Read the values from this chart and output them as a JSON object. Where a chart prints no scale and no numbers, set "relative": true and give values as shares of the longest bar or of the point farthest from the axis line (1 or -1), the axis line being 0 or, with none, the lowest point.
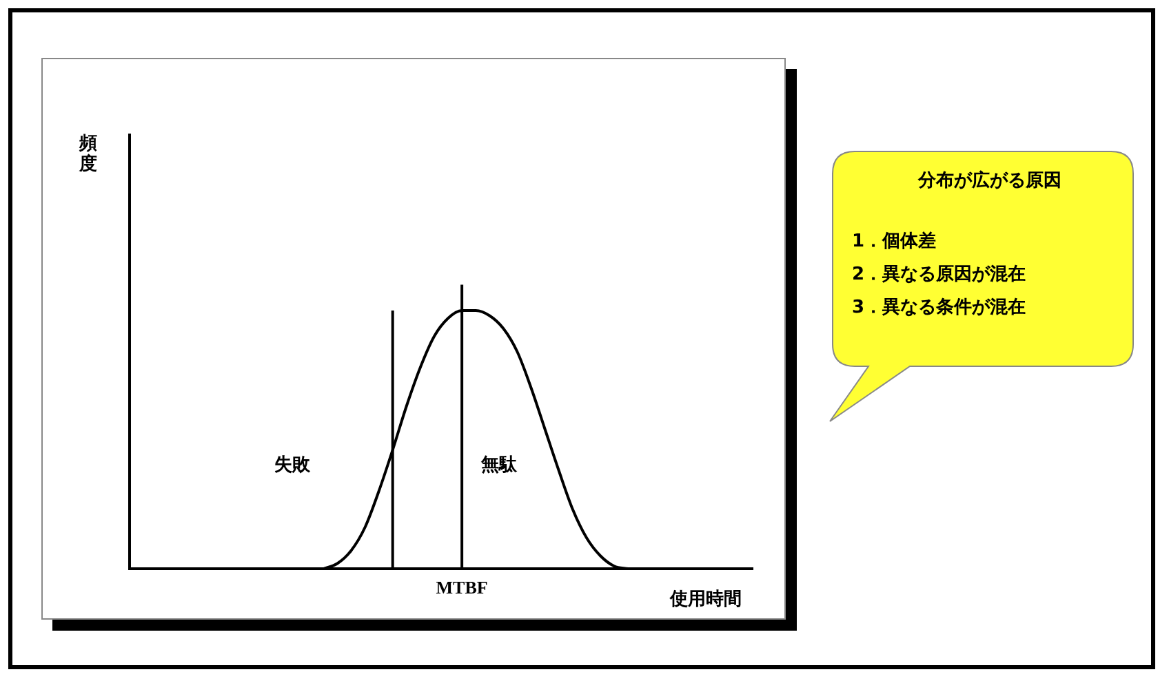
{
  "chart_data": {
    "type": "line",
    "relative": true,
    "xlabel": "使用時間",
    "color": "#000000",
    "marker": "none",
    "grid": false,
    "legend": false,
    "tick_labels": false,
    "categories": [
      null,
      null,
      null,
      null,
      null,
      null,
      null,
      null,
      null,
      null,
      null,
      null,
      null,
      null,
      null,
      null,
      null,
      null,
      null,
      null,
      null,
      null,
      null,
      null,
      null,
      null,
      null,
      null,
      null,
      null,
      null,
      null,
      null,
      null,
      null,
      null,
      null,
      null,
      null,
      null,
      null,
      null,
      null,
      null,
      null,
      null
    ],
    "values": [
      null,
      null,
      null,
      null,
      null,
      null,
      null,
      null,
      null,
      null,
      null,
      null,
      null,
      null,
      0,
      0.02,
      0.07,
      0.16,
      0.3,
      0.46,
      0.63,
      0.78,
      0.9,
      0.97,
      1.0,
      1.0,
      0.98,
      0.93,
      0.84,
      0.7,
      0.54,
      0.38,
      0.23,
      0.12,
      0.05,
      0.01,
      0,
      null,
      null,
      null,
      null,
      null,
      null,
      null,
      null,
      null
    ],
    "annotations": [
      "頻度",
      "失敗",
      "無駄",
      "MTBF",
      "分布が広がる原因",
      "1．個体差",
      "2．異なる原因が混在",
      "3．異なる条件が混在"
    ]
  }
}
